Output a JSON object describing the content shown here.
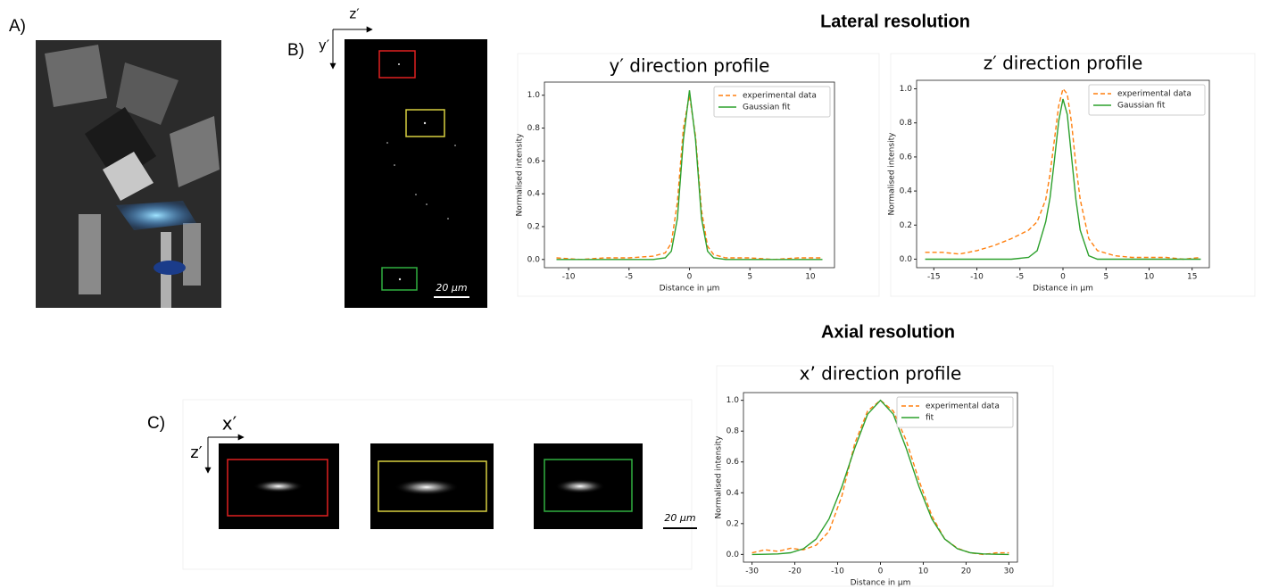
{
  "figure": {
    "lateral_title": "Lateral resolution",
    "axial_title": "Axial resolution",
    "panel_a": "A)",
    "panel_b": "B)",
    "panel_c": "C)",
    "b_axis_horizontal": "z′",
    "b_axis_vertical": "y′",
    "b_scale": "20 μm",
    "c_axis_horizontal": "x′",
    "c_axis_vertical": "z′",
    "c_scale": "20 μm"
  },
  "chart_data": [
    {
      "type": "line",
      "title": "y′ direction profile",
      "xlabel": "Distance in μm",
      "ylabel": "Normalised intensity",
      "x": [
        -11,
        -9,
        -7,
        -5,
        -3,
        -2,
        -1.5,
        -1,
        -0.5,
        0,
        0.5,
        1,
        1.5,
        2,
        3,
        5,
        7,
        9,
        11
      ],
      "series": [
        {
          "name": "experimental data",
          "color": "#ff7f0e",
          "linestyle": "dashed",
          "values": [
            0.01,
            0.0,
            0.01,
            0.01,
            0.02,
            0.04,
            0.1,
            0.35,
            0.8,
            1.0,
            0.75,
            0.3,
            0.08,
            0.03,
            0.01,
            0.01,
            0.0,
            0.01,
            0.01
          ]
        },
        {
          "name": "Gaussian fit",
          "color": "#2ca02c",
          "linestyle": "solid",
          "values": [
            0,
            0,
            0,
            0,
            0,
            0.01,
            0.05,
            0.25,
            0.73,
            1.03,
            0.73,
            0.25,
            0.05,
            0.01,
            0,
            0,
            0,
            0,
            0
          ]
        }
      ],
      "xlim": [
        -12,
        12
      ],
      "ylim": [
        -0.05,
        1.08
      ],
      "xticks": [
        -10,
        -5,
        0,
        5,
        10
      ],
      "yticks": [
        {
          "value": 0,
          "label": "0.0"
        },
        0.2,
        0.4,
        0.6,
        0.8,
        {
          "value": 1,
          "label": "1.0"
        }
      ],
      "legend": "upper right"
    },
    {
      "type": "line",
      "title": "z′ direction profile",
      "xlabel": "Distance in μm",
      "ylabel": "Normalised intensity",
      "x": [
        -16,
        -14,
        -12,
        -10,
        -8,
        -6,
        -4,
        -3,
        -2,
        -1.5,
        -1,
        -0.5,
        0,
        0.5,
        1,
        1.5,
        2,
        3,
        4,
        6,
        8,
        10,
        12,
        14,
        16
      ],
      "series": [
        {
          "name": "experimental data",
          "color": "#ff7f0e",
          "linestyle": "dashed",
          "values": [
            0.04,
            0.04,
            0.03,
            0.05,
            0.08,
            0.12,
            0.17,
            0.22,
            0.35,
            0.5,
            0.7,
            0.9,
            1.0,
            0.97,
            0.8,
            0.55,
            0.35,
            0.12,
            0.05,
            0.02,
            0.01,
            0.01,
            0.01,
            0.0,
            0.01
          ]
        },
        {
          "name": "Gaussian fit",
          "color": "#2ca02c",
          "linestyle": "solid",
          "values": [
            0,
            0,
            0,
            0,
            0,
            0,
            0.01,
            0.05,
            0.22,
            0.36,
            0.58,
            0.81,
            0.94,
            0.85,
            0.6,
            0.35,
            0.17,
            0.02,
            0,
            0,
            0,
            0,
            0,
            0,
            0
          ]
        }
      ],
      "xlim": [
        -17,
        17
      ],
      "ylim": [
        -0.05,
        1.05
      ],
      "xticks": [
        -15,
        -10,
        -5,
        0,
        5,
        10,
        15
      ],
      "yticks": [
        {
          "value": 0,
          "label": "0.0"
        },
        0.2,
        0.4,
        0.6,
        0.8,
        {
          "value": 1,
          "label": "1.0"
        }
      ],
      "legend": "upper right"
    },
    {
      "type": "line",
      "title": "x’ direction profile",
      "xlabel": "Distance in μm",
      "ylabel": "Normalised intensity",
      "x": [
        -30,
        -27,
        -24,
        -21,
        -18,
        -15,
        -12,
        -9,
        -6,
        -3,
        0,
        3,
        6,
        9,
        12,
        15,
        18,
        21,
        24,
        27,
        30
      ],
      "series": [
        {
          "name": "experimental data",
          "color": "#ff7f0e",
          "linestyle": "dashed",
          "values": [
            0.01,
            0.03,
            0.02,
            0.04,
            0.03,
            0.06,
            0.15,
            0.38,
            0.72,
            0.93,
            1.0,
            0.93,
            0.74,
            0.48,
            0.25,
            0.1,
            0.04,
            0.01,
            0.0,
            0.01,
            0.01
          ]
        },
        {
          "name": "fit",
          "color": "#2ca02c",
          "linestyle": "solid",
          "values": [
            0,
            0.001,
            0.003,
            0.011,
            0.037,
            0.1,
            0.23,
            0.44,
            0.69,
            0.91,
            1.0,
            0.91,
            0.69,
            0.44,
            0.23,
            0.1,
            0.037,
            0.011,
            0.003,
            0.001,
            0
          ]
        }
      ],
      "xlim": [
        -32,
        32
      ],
      "ylim": [
        -0.05,
        1.05
      ],
      "xticks": [
        -30,
        -20,
        -10,
        0,
        10,
        20,
        30
      ],
      "yticks": [
        {
          "value": 0,
          "label": "0.0"
        },
        0.2,
        0.4,
        0.6,
        0.8,
        {
          "value": 1,
          "label": "1.0"
        }
      ],
      "legend": "upper right"
    }
  ]
}
